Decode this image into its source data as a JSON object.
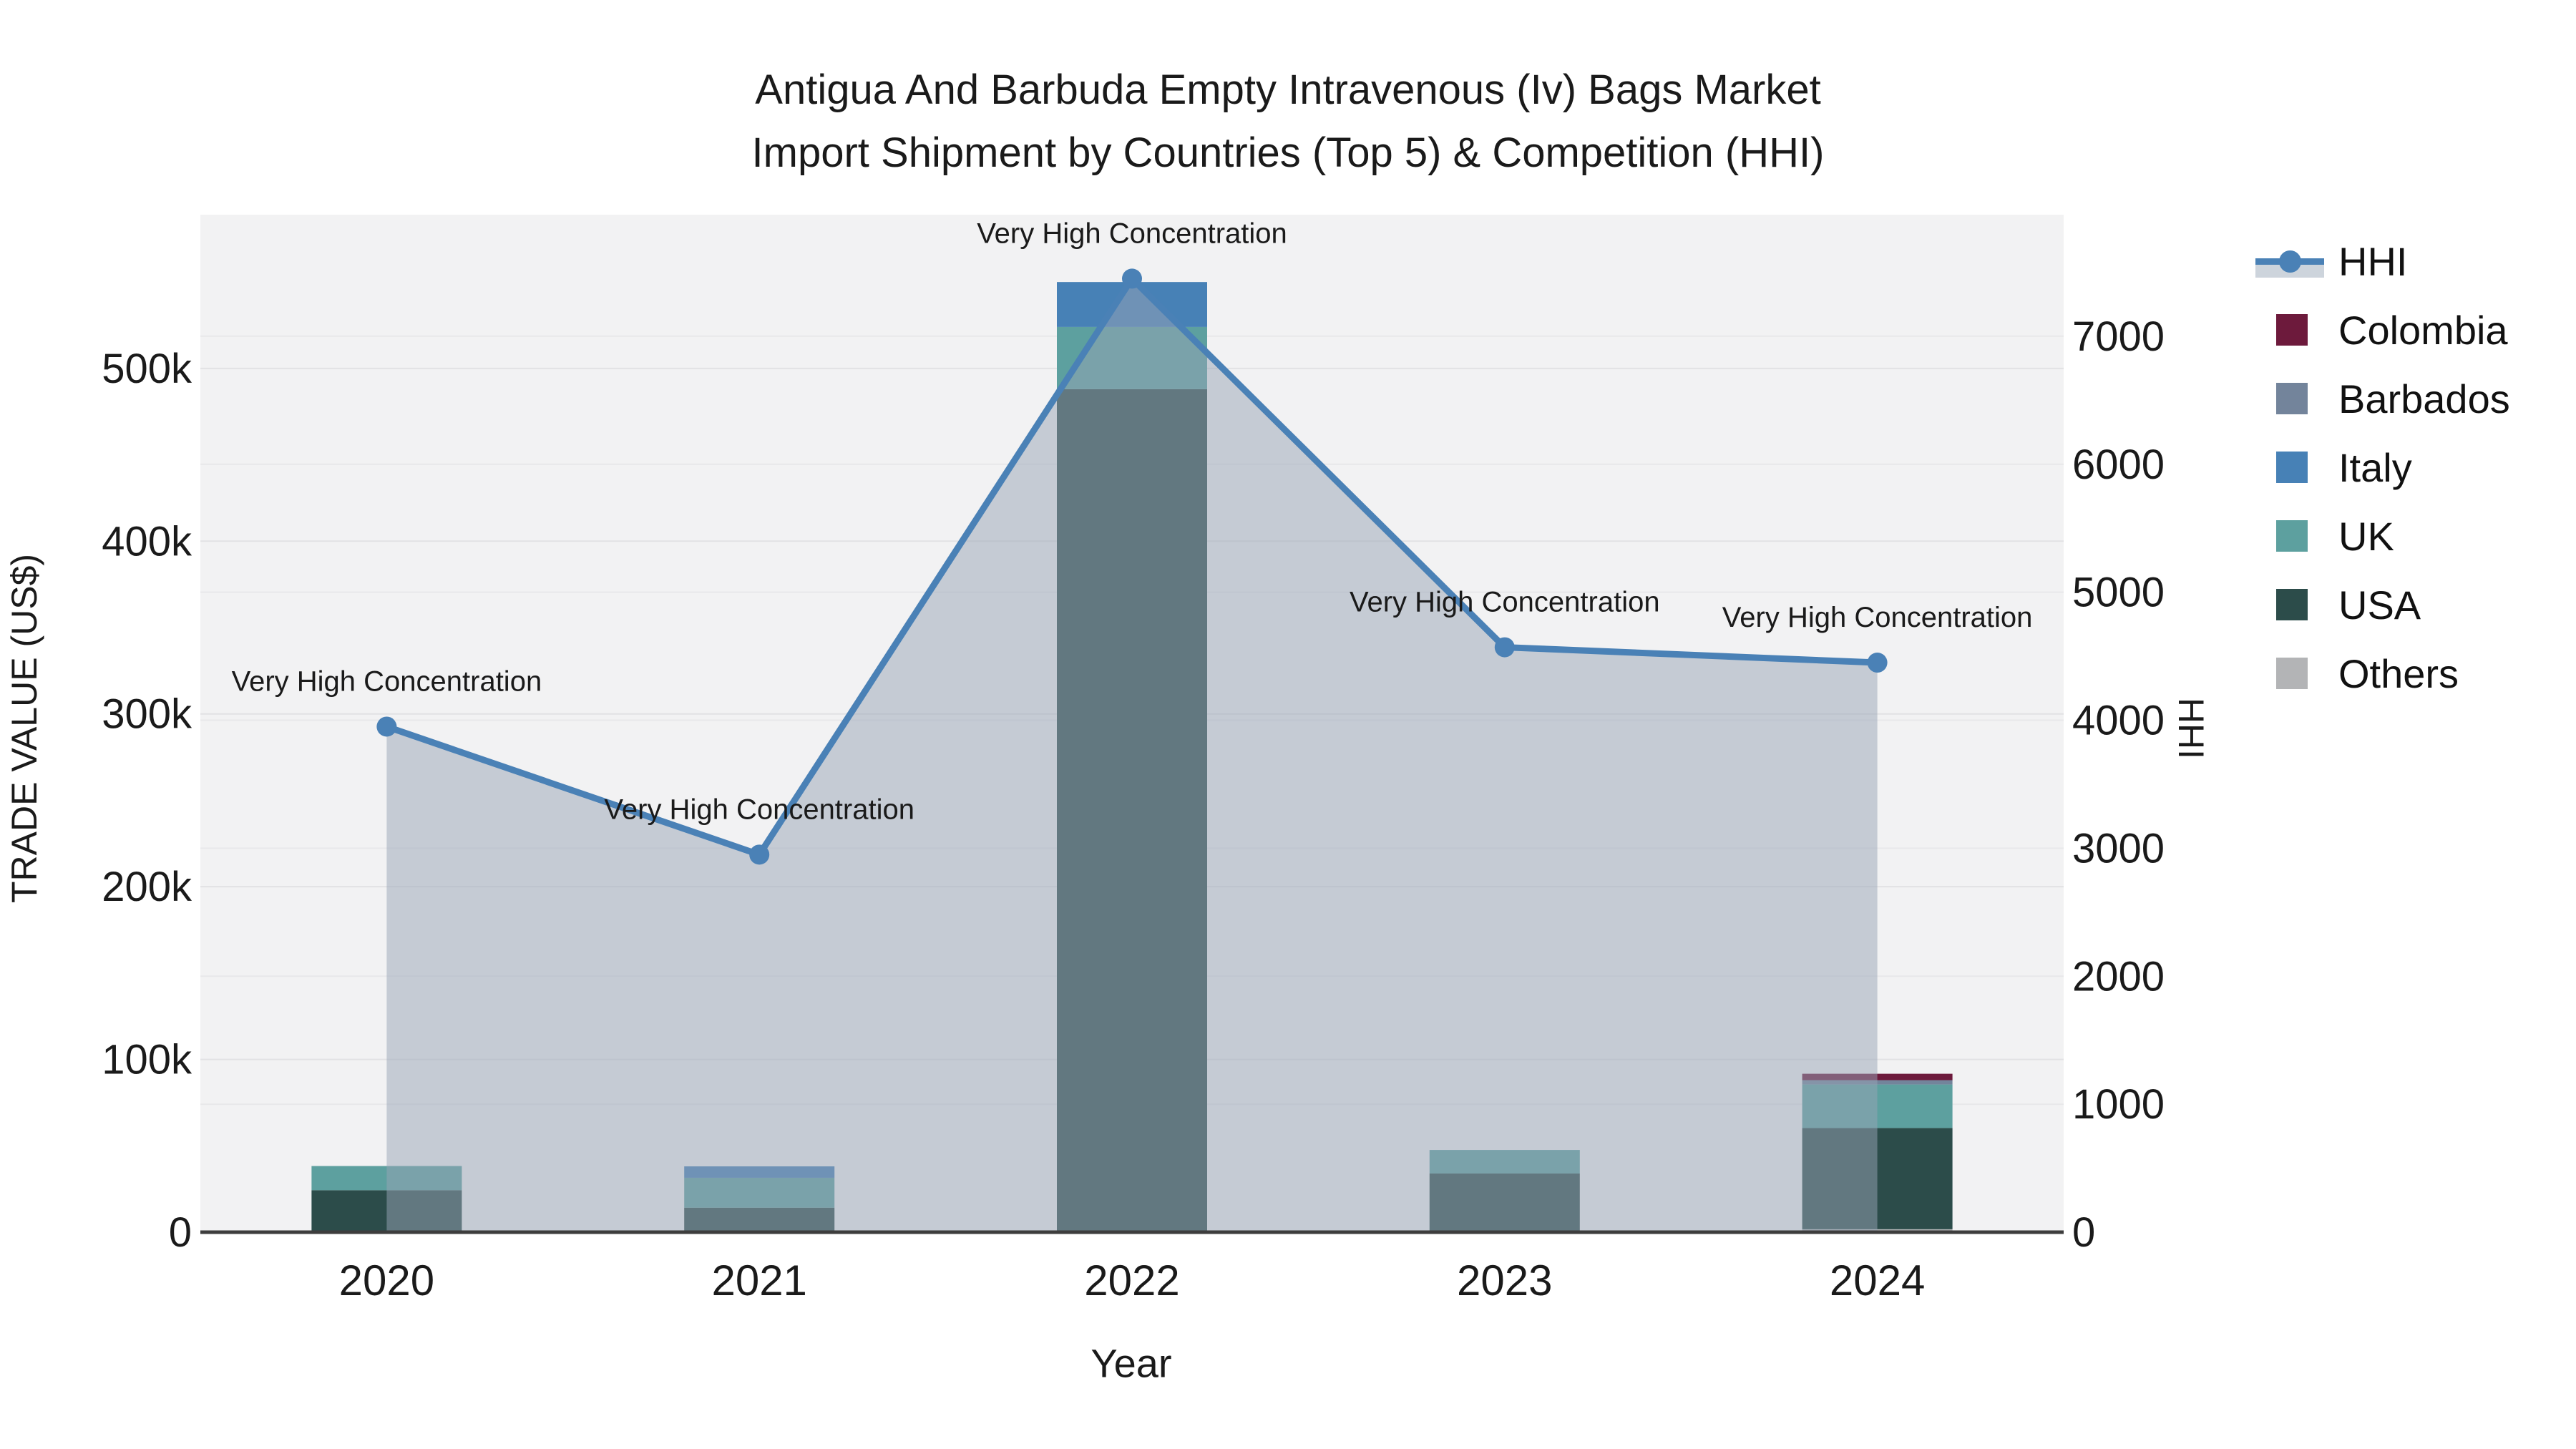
{
  "title": {
    "line1": "Antigua And Barbuda Empty Intravenous (Iv) Bags Market",
    "line2": "Import Shipment by Countries (Top 5) & Competition (HHI)"
  },
  "axes": {
    "x": {
      "title": "Year",
      "tick_labels": [
        "2020",
        "2021",
        "2022",
        "2023",
        "2024"
      ]
    },
    "left": {
      "title": "TRADE VALUE (US$)",
      "tick_labels": [
        "0",
        "100k",
        "200k",
        "300k",
        "400k",
        "500k"
      ],
      "tick_values": [
        0,
        100000,
        200000,
        300000,
        400000,
        500000
      ]
    },
    "right": {
      "title": "HHI",
      "tick_labels": [
        "0",
        "1000",
        "2000",
        "3000",
        "4000",
        "5000",
        "6000",
        "7000"
      ],
      "tick_values": [
        0,
        1000,
        2000,
        3000,
        4000,
        5000,
        6000,
        7000
      ]
    }
  },
  "legend": {
    "items": [
      {
        "label": "HHI",
        "type": "line",
        "color": "#4a81b6",
        "band": "#cdd4dc"
      },
      {
        "label": "Colombia",
        "type": "swatch",
        "color": "#6d1a3c"
      },
      {
        "label": "Barbados",
        "type": "swatch",
        "color": "#73849b"
      },
      {
        "label": "Italy",
        "type": "swatch",
        "color": "#4781b6"
      },
      {
        "label": "UK",
        "type": "swatch",
        "color": "#5da09f"
      },
      {
        "label": "USA",
        "type": "swatch",
        "color": "#2c4c4a"
      },
      {
        "label": "Others",
        "type": "swatch",
        "color": "#b3b4b6"
      }
    ]
  },
  "chart_data": {
    "type": "bar+line",
    "title": "Antigua And Barbuda Empty Intravenous (Iv) Bags Market — Import Shipment by Countries (Top 5) & Competition (HHI)",
    "xlabel": "Year",
    "ylabel_left": "TRADE VALUE (US$)",
    "ylabel_right": "HHI",
    "categories": [
      "2020",
      "2021",
      "2022",
      "2023",
      "2024"
    ],
    "bar_series": [
      {
        "name": "Colombia",
        "color": "#6d1a3c",
        "values": [
          0,
          0,
          0,
          0,
          3700
        ]
      },
      {
        "name": "Barbados",
        "color": "#73849b",
        "values": [
          0,
          0,
          0,
          0,
          2500
        ]
      },
      {
        "name": "Italy",
        "color": "#4781b6",
        "values": [
          0,
          6600,
          26000,
          0,
          0
        ]
      },
      {
        "name": "UK",
        "color": "#5da09f",
        "values": [
          14000,
          17300,
          36000,
          13600,
          25200
        ]
      },
      {
        "name": "USA",
        "color": "#2c4c4a",
        "values": [
          23500,
          13700,
          487000,
          33000,
          58600
        ]
      },
      {
        "name": "Others",
        "color": "#b3b4b6",
        "values": [
          800,
          500,
          1000,
          1000,
          1700
        ]
      }
    ],
    "bar_totals": [
      38300,
      38100,
      550000,
      47600,
      91700
    ],
    "line_series": {
      "name": "HHI",
      "axis": "right",
      "color": "#4a81b6",
      "area_fill": "rgba(151,164,181,0.5)",
      "values": [
        3950,
        2950,
        7450,
        4570,
        4450
      ]
    },
    "annotations": [
      "Very High Concentration",
      "Very High Concentration",
      "Very High Concentration",
      "Very High Concentration",
      "Very High Concentration"
    ],
    "left_axis_range": [
      0,
      589000
    ],
    "right_axis_range": [
      0,
      7950
    ],
    "legend_position": "right",
    "grid": true,
    "plot_bg": "#f2f2f3",
    "grid_color_left": "#e2e2e4",
    "grid_color_right": "#e8e8ea",
    "axis_line_color": "#3d3d3d",
    "text_color": "#1a1a1a"
  }
}
